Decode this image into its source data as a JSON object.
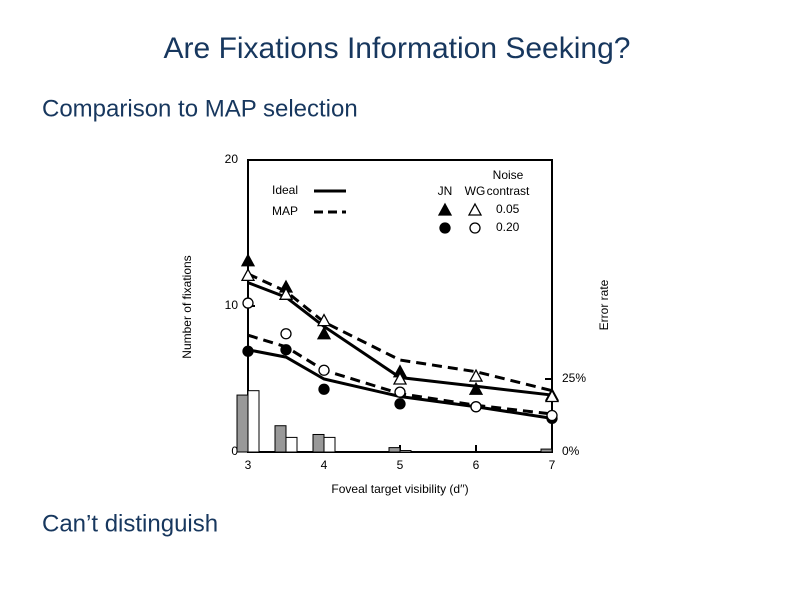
{
  "slide": {
    "title": "Are Fixations Information Seeking?",
    "subtitle": "Comparison to MAP selection",
    "caption": "Can’t distinguish"
  },
  "chart_data": {
    "type": "line",
    "x_label": "Foveal target visibility (d′′)",
    "y_label": "Number of fixations",
    "y2_label": "Error rate",
    "xlim": [
      3,
      7
    ],
    "xticks": [
      3,
      4,
      5,
      6,
      7
    ],
    "ylim": [
      0,
      20
    ],
    "yticks": [
      0,
      10,
      20
    ],
    "y2lim": [
      0,
      100
    ],
    "y2ticks": [
      {
        "value": 0,
        "label": "0%"
      },
      {
        "value": 25,
        "label": "25%"
      }
    ],
    "x": [
      3,
      3.5,
      4,
      5,
      6,
      7
    ],
    "legend": {
      "line_labels": [
        "Ideal",
        "MAP"
      ],
      "group_labels": [
        "JN",
        "WG"
      ],
      "contrast_title": [
        "Noise",
        "contrast"
      ],
      "contrast_labels": [
        "0.05",
        "0.20"
      ]
    },
    "lines": [
      {
        "style": "solid",
        "color": "#000000",
        "values": [
          11.6,
          10.6,
          8.6,
          5.1,
          4.5,
          3.9
        ]
      },
      {
        "style": "dashed",
        "color": "#000000",
        "values": [
          12.2,
          11.0,
          8.9,
          6.3,
          5.5,
          4.2
        ]
      },
      {
        "style": "solid",
        "color": "#000000",
        "values": [
          7.0,
          6.5,
          5.0,
          3.8,
          3.1,
          2.3
        ]
      },
      {
        "style": "dashed",
        "color": "#000000",
        "values": [
          8.0,
          7.2,
          5.6,
          4.0,
          3.2,
          2.6
        ]
      }
    ],
    "points": [
      {
        "marker": "filled-triangle",
        "values": [
          13.1,
          11.3,
          8.1,
          5.5,
          4.3,
          3.9
        ]
      },
      {
        "marker": "open-triangle",
        "values": [
          12.1,
          10.8,
          9.0,
          5.0,
          5.2,
          3.8
        ]
      },
      {
        "marker": "filled-circle",
        "values": [
          6.9,
          7.0,
          4.3,
          3.3,
          3.1,
          2.3
        ]
      },
      {
        "marker": "open-circle",
        "values": [
          10.2,
          8.1,
          5.6,
          4.1,
          3.1,
          2.5
        ]
      }
    ],
    "bars": [
      {
        "color": "#999999",
        "values": [
          19.5,
          9,
          6,
          1.5,
          0,
          1
        ]
      },
      {
        "color": "#ffffff",
        "values": [
          21,
          5,
          5,
          0.5,
          0,
          0
        ]
      }
    ]
  }
}
